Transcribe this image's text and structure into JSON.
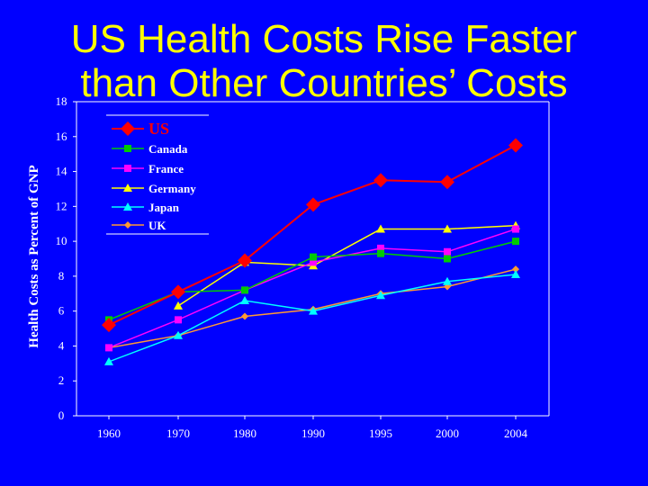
{
  "slide": {
    "title_line1": "US Health Costs Rise Faster",
    "title_line2": "than Other Countries’ Costs"
  },
  "chart_data": {
    "type": "line",
    "title": "US Health Costs Rise Faster than Other Countries’ Costs",
    "ylabel": "Health Costs as Percent of GNP",
    "xlabel": "",
    "categories": [
      "1960",
      "1970",
      "1980",
      "1990",
      "1995",
      "2000",
      "2004"
    ],
    "yticks": [
      0,
      2,
      4,
      6,
      8,
      10,
      12,
      14,
      16,
      18
    ],
    "ylim": [
      0,
      18
    ],
    "grid": false,
    "legend_position": "top-left",
    "series": [
      {
        "name": "US",
        "color": "#ff0000",
        "marker": "diamond-large",
        "values": [
          5.2,
          7.1,
          8.9,
          12.1,
          13.5,
          13.4,
          15.5
        ]
      },
      {
        "name": "Canada",
        "color": "#00cc00",
        "marker": "square",
        "values": [
          5.5,
          7.1,
          7.2,
          9.1,
          9.3,
          9.0,
          10.0
        ]
      },
      {
        "name": "France",
        "color": "#ff00ff",
        "marker": "square",
        "values": [
          3.9,
          5.5,
          7.2,
          8.8,
          9.6,
          9.4,
          10.7
        ]
      },
      {
        "name": "Germany",
        "color": "#ffff00",
        "marker": "triangle",
        "values": [
          null,
          6.3,
          8.8,
          8.6,
          10.7,
          10.7,
          10.9
        ]
      },
      {
        "name": "Japan",
        "color": "#00ffff",
        "marker": "triangle",
        "values": [
          3.1,
          4.6,
          6.6,
          6.0,
          6.9,
          7.7,
          8.1
        ]
      },
      {
        "name": "UK",
        "color": "#ff9933",
        "marker": "diamond",
        "values": [
          3.9,
          4.6,
          5.7,
          6.1,
          7.0,
          7.4,
          8.4
        ]
      }
    ]
  }
}
